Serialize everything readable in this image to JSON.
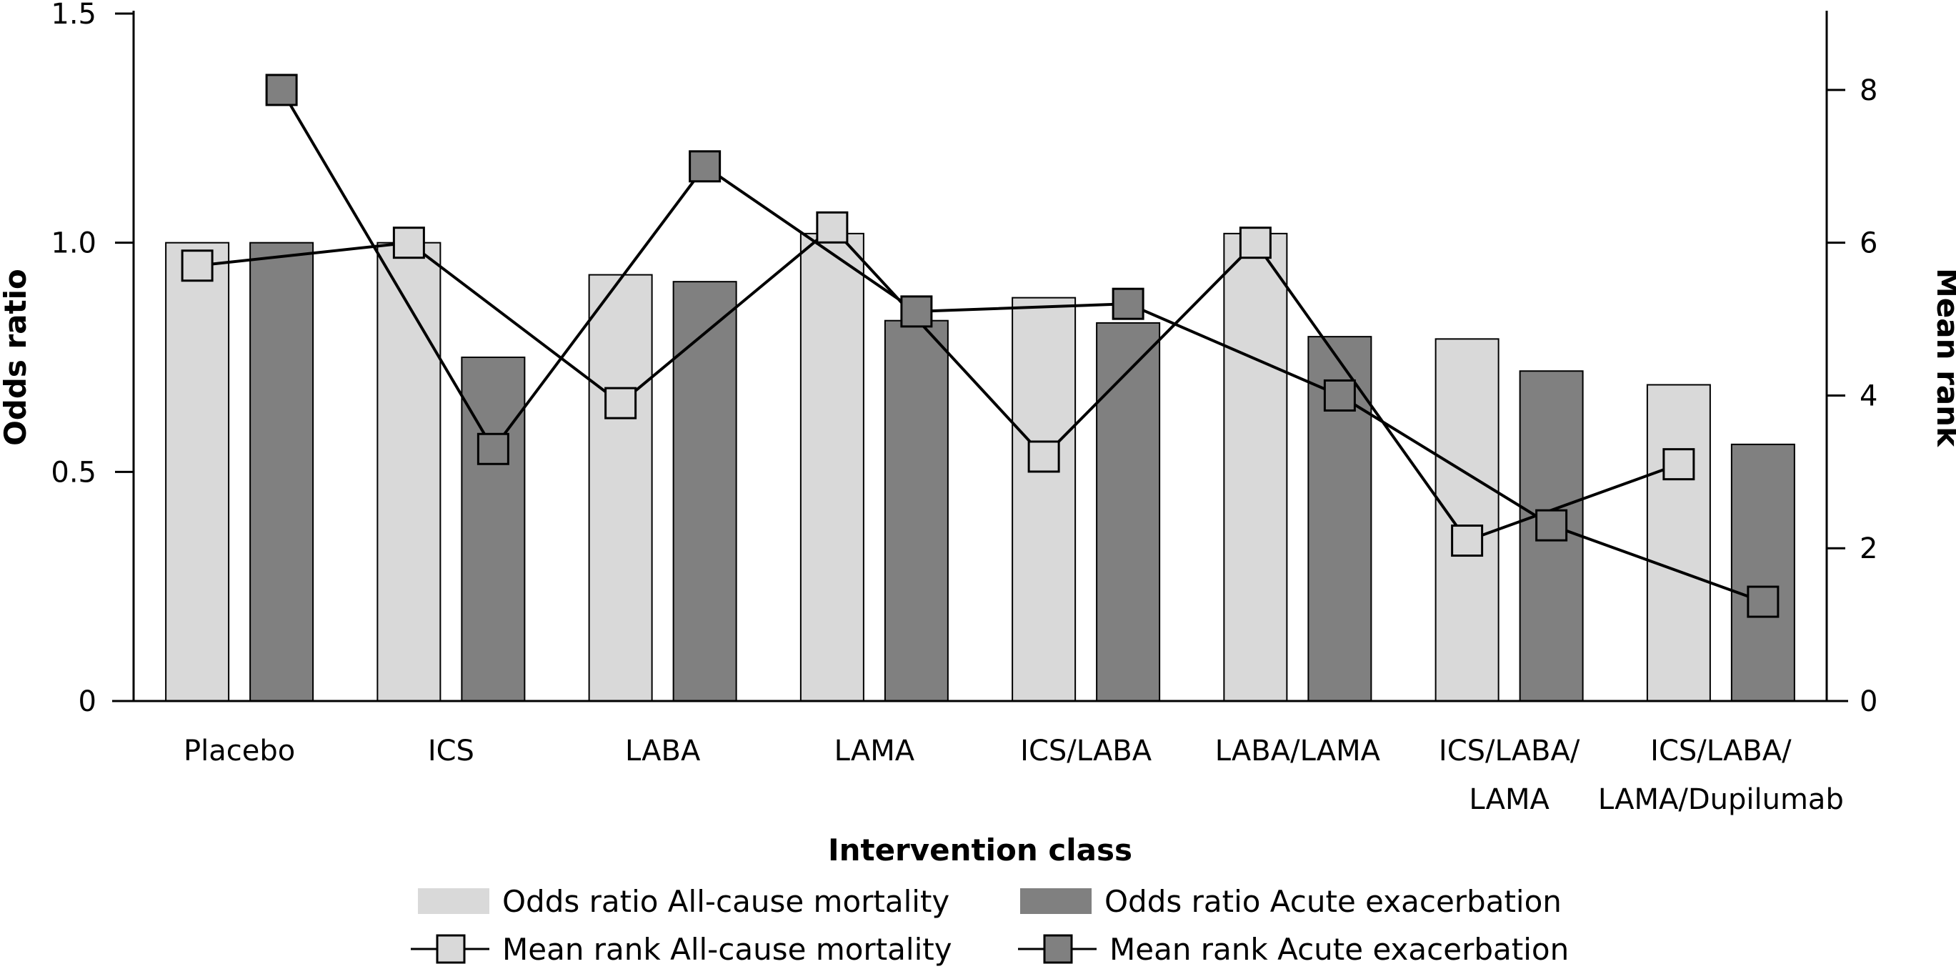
{
  "chart_data": {
    "type": "bar",
    "xlabel": "Intervention class",
    "ylabel": "Odds ratio",
    "y2label": "Mean rank",
    "ylim": [
      0,
      1.5
    ],
    "y2lim": [
      0,
      9
    ],
    "yticks": [
      "0",
      "0.5",
      "1.0",
      "1.5"
    ],
    "y2ticks": [
      "0",
      "2",
      "4",
      "6",
      "8"
    ],
    "categories": [
      [
        "Placebo"
      ],
      [
        "ICS"
      ],
      [
        "LABA"
      ],
      [
        "LAMA"
      ],
      [
        "ICS/LABA"
      ],
      [
        "LABA/LAMA"
      ],
      [
        "ICS/LABA/",
        "LAMA"
      ],
      [
        "ICS/LABA/",
        "LAMA/Dupilumab"
      ]
    ],
    "bar_series": [
      {
        "name": "Odds ratio All-cause mortality",
        "color": "#d9d9d9",
        "values": [
          1.0,
          1.0,
          0.93,
          1.02,
          0.88,
          1.02,
          0.79,
          0.69
        ]
      },
      {
        "name": "Odds ratio Acute exacerbation",
        "color": "#808080",
        "values": [
          1.0,
          0.75,
          0.915,
          0.83,
          0.825,
          0.795,
          0.72,
          0.56
        ]
      }
    ],
    "line_series": [
      {
        "name": "Mean rank All-cause mortality",
        "marker_color": "#d9d9d9",
        "values": [
          5.7,
          6.0,
          3.9,
          6.2,
          3.2,
          6.0,
          2.1,
          3.1
        ]
      },
      {
        "name": "Mean rank Acute exacerbation",
        "marker_color": "#808080",
        "values": [
          8.0,
          3.3,
          7.0,
          5.1,
          5.2,
          4.0,
          2.3,
          1.3
        ]
      }
    ],
    "grid": false,
    "legend_position": "bottom"
  }
}
